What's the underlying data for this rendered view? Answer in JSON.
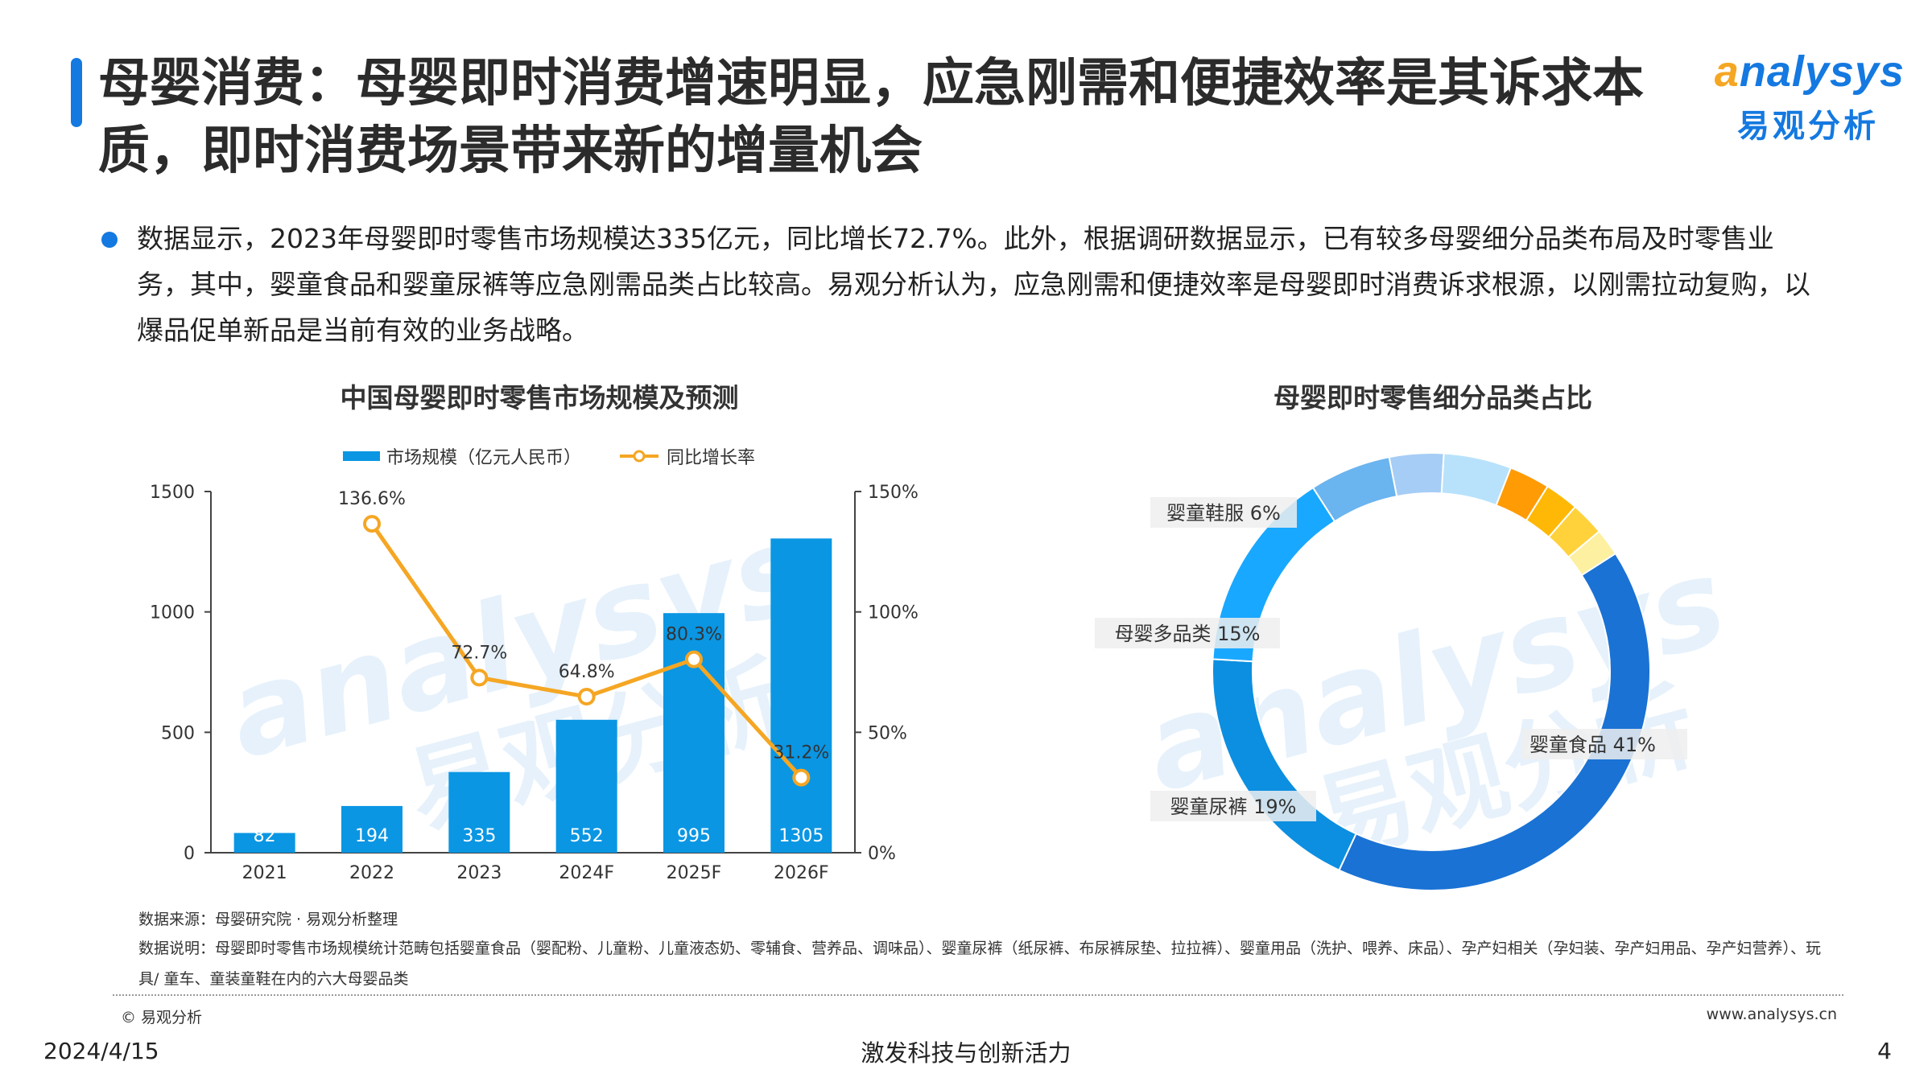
{
  "title": "母婴消费：母婴即时消费增速明显，应急刚需和便捷效率是其诉求本质，即时消费场景带来新的增量机会",
  "logo": {
    "en_initial": "a",
    "en_rest": "nalysys",
    "cn": "易观分析"
  },
  "bullet": "数据显示，2023年母婴即时零售市场规模达335亿元，同比增长72.7%。此外，根据调研数据显示，已有较多母婴细分品类布局及时零售业务，其中，婴童食品和婴童尿裤等应急刚需品类占比较高。易观分析认为，应急刚需和便捷效率是母婴即时消费诉求根源，以刚需拉动复购，以爆品促单新品是当前有效的业务战略。",
  "chart_data": [
    {
      "type": "bar",
      "title": "中国母婴即时零售市场规模及预测",
      "categories": [
        "2021",
        "2022",
        "2023",
        "2024F",
        "2025F",
        "2026F"
      ],
      "series": [
        {
          "name": "市场规模（亿元人民币）",
          "values": [
            82,
            194,
            335,
            552,
            995,
            1305
          ],
          "value_labels": [
            "82",
            "194",
            "335",
            "552",
            "995",
            "1305"
          ],
          "color": "#0a96e3",
          "axis": "left"
        },
        {
          "name": "同比增长率",
          "type": "line",
          "values": [
            null,
            136.6,
            72.7,
            64.8,
            80.3,
            31.2
          ],
          "value_labels": [
            "",
            "136.6%",
            "72.7%",
            "64.8%",
            "80.3%",
            "31.2%"
          ],
          "color": "#f5a623",
          "axis": "right"
        }
      ],
      "yleft": {
        "range": [
          0,
          1500
        ],
        "ticks": [
          "0",
          "500",
          "1000",
          "1500"
        ],
        "tick_values": [
          0,
          500,
          1000,
          1500
        ]
      },
      "yright": {
        "range": [
          0,
          150
        ],
        "ticks": [
          "0%",
          "50%",
          "100%",
          "150%"
        ],
        "tick_values": [
          0,
          50,
          100,
          150
        ]
      },
      "legend": "top-center",
      "grid": false
    },
    {
      "type": "pie",
      "donut": true,
      "title": "母婴即时零售细分品类占比",
      "slices": [
        {
          "label": "婴童食品 41%",
          "value": 41,
          "color": "#1a72d4"
        },
        {
          "label": "婴童尿裤 19%",
          "value": 19,
          "color": "#0c8fe0"
        },
        {
          "label": "母婴多品类 15%",
          "value": 15,
          "color": "#19a8ff"
        },
        {
          "label": "婴童鞋服 6%",
          "value": 6,
          "color": "#6ab4ef"
        },
        {
          "label": "",
          "value": 4,
          "color": "#a6cdf5"
        },
        {
          "label": "",
          "value": 5,
          "color": "#b8e2fb"
        },
        {
          "label": "",
          "value": 3,
          "color": "#ff9b05"
        },
        {
          "label": "",
          "value": 2.5,
          "color": "#ffb806"
        },
        {
          "label": "",
          "value": 2.5,
          "color": "#ffd23c"
        },
        {
          "label": "",
          "value": 2,
          "color": "#fdf0a0"
        }
      ]
    }
  ],
  "notes": {
    "source": "数据来源：母婴研究院 · 易观分析整理",
    "explain": "数据说明：母婴即时零售市场规模统计范畴包括婴童食品（婴配粉、儿童粉、儿童液态奶、零辅食、营养品、调味品）、婴童尿裤（纸尿裤、布尿裤尿垫、拉拉裤）、婴童用品（洗护、喂养、床品）、孕产妇相关（孕妇装、孕产妇用品、孕产妇营养）、玩具/ 童车、童装童鞋在内的六大母婴品类"
  },
  "footer": {
    "copyright": "© 易观分析",
    "website": "www.analysys.cn",
    "date": "2024/4/15",
    "slogan": "激发科技与创新活力",
    "page": "4"
  },
  "watermark": {
    "en": "analysys",
    "cn": "易观分析"
  }
}
